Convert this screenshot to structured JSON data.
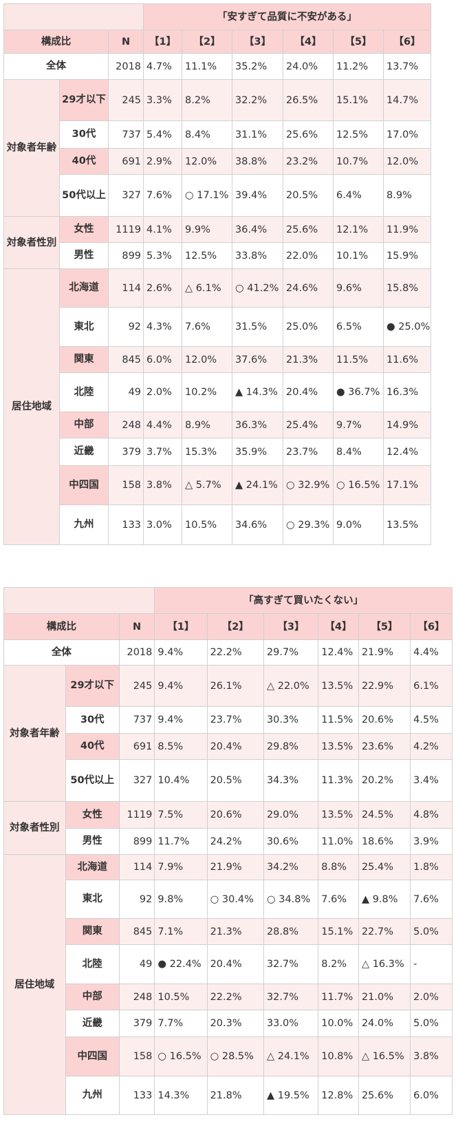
{
  "tables": [
    {
      "title": "「安すぎて品質に不安がある」",
      "headers": [
        "構成比",
        "N",
        "【1】",
        "【2】",
        "【3】",
        "【4】",
        "【5】",
        "【6】"
      ],
      "groups": [
        {
          "label": "全体",
          "rows": [
            {
              "label": "",
              "n": "2018",
              "values": [
                "4.7%",
                "11.1%",
                "35.2%",
                "24.0%",
                "11.2%",
                "13.7%"
              ]
            }
          ]
        },
        {
          "label": "対象者年齢",
          "rows": [
            {
              "label": "29才以下",
              "n": "245",
              "values": [
                "3.3%",
                "8.2%",
                "32.2%",
                "26.5%",
                "15.1%",
                "14.7%"
              ]
            },
            {
              "label": "30代",
              "n": "737",
              "values": [
                "5.4%",
                "8.4%",
                "31.1%",
                "25.6%",
                "12.5%",
                "17.0%"
              ]
            },
            {
              "label": "40代",
              "n": "691",
              "values": [
                "2.9%",
                "12.0%",
                "38.8%",
                "23.2%",
                "10.7%",
                "12.0%"
              ]
            },
            {
              "label": "50代以上",
              "n": "327",
              "values": [
                "7.6%",
                "○ 17.1%",
                "39.4%",
                "20.5%",
                "6.4%",
                "8.9%"
              ]
            }
          ]
        },
        {
          "label": "対象者性別",
          "rows": [
            {
              "label": "女性",
              "n": "1119",
              "values": [
                "4.1%",
                "9.9%",
                "36.4%",
                "25.6%",
                "12.1%",
                "11.9%"
              ]
            },
            {
              "label": "男性",
              "n": "899",
              "values": [
                "5.3%",
                "12.5%",
                "33.8%",
                "22.0%",
                "10.1%",
                "15.9%"
              ]
            }
          ]
        },
        {
          "label": "居住地域",
          "rows": [
            {
              "label": "北海道",
              "n": "114",
              "values": [
                "2.6%",
                "△ 6.1%",
                "○ 41.2%",
                "24.6%",
                "9.6%",
                "15.8%"
              ]
            },
            {
              "label": "東北",
              "n": "92",
              "values": [
                "4.3%",
                "7.6%",
                "31.5%",
                "25.0%",
                "6.5%",
                "● 25.0%"
              ]
            },
            {
              "label": "関東",
              "n": "845",
              "values": [
                "6.0%",
                "12.0%",
                "37.6%",
                "21.3%",
                "11.5%",
                "11.6%"
              ]
            },
            {
              "label": "北陸",
              "n": "49",
              "values": [
                "2.0%",
                "10.2%",
                "▲ 14.3%",
                "20.4%",
                "● 36.7%",
                "16.3%"
              ]
            },
            {
              "label": "中部",
              "n": "248",
              "values": [
                "4.4%",
                "8.9%",
                "36.3%",
                "25.4%",
                "9.7%",
                "14.9%"
              ]
            },
            {
              "label": "近畿",
              "n": "379",
              "values": [
                "3.7%",
                "15.3%",
                "35.9%",
                "23.7%",
                "8.4%",
                "12.4%"
              ]
            },
            {
              "label": "中四国",
              "n": "158",
              "values": [
                "3.8%",
                "△ 5.7%",
                "▲ 24.1%",
                "○ 32.9%",
                "○ 16.5%",
                "17.1%"
              ]
            },
            {
              "label": "九州",
              "n": "133",
              "values": [
                "3.0%",
                "10.5%",
                "34.6%",
                "○ 29.3%",
                "9.0%",
                "13.5%"
              ]
            }
          ]
        }
      ]
    },
    {
      "title": "「高すぎて買いたくない」",
      "headers": [
        "構成比",
        "N",
        "【1】",
        "【2】",
        "【3】",
        "【4】",
        "【5】",
        "【6】"
      ],
      "groups": [
        {
          "label": "全体",
          "rows": [
            {
              "label": "",
              "n": "2018",
              "values": [
                "9.4%",
                "22.2%",
                "29.7%",
                "12.4%",
                "21.9%",
                "4.4%"
              ]
            }
          ]
        },
        {
          "label": "対象者年齢",
          "rows": [
            {
              "label": "29才以下",
              "n": "245",
              "values": [
                "9.4%",
                "26.1%",
                "△ 22.0%",
                "13.5%",
                "22.9%",
                "6.1%"
              ]
            },
            {
              "label": "30代",
              "n": "737",
              "values": [
                "9.4%",
                "23.7%",
                "30.3%",
                "11.5%",
                "20.6%",
                "4.5%"
              ]
            },
            {
              "label": "40代",
              "n": "691",
              "values": [
                "8.5%",
                "20.4%",
                "29.8%",
                "13.5%",
                "23.6%",
                "4.2%"
              ]
            },
            {
              "label": "50代以上",
              "n": "327",
              "values": [
                "10.4%",
                "20.5%",
                "34.3%",
                "11.3%",
                "20.2%",
                "3.4%"
              ]
            }
          ]
        },
        {
          "label": "対象者性別",
          "rows": [
            {
              "label": "女性",
              "n": "1119",
              "values": [
                "7.5%",
                "20.6%",
                "29.0%",
                "13.5%",
                "24.5%",
                "4.8%"
              ]
            },
            {
              "label": "男性",
              "n": "899",
              "values": [
                "11.7%",
                "24.2%",
                "30.6%",
                "11.0%",
                "18.6%",
                "3.9%"
              ]
            }
          ]
        },
        {
          "label": "居住地域",
          "rows": [
            {
              "label": "北海道",
              "n": "114",
              "values": [
                "7.9%",
                "21.9%",
                "34.2%",
                "8.8%",
                "25.4%",
                "1.8%"
              ]
            },
            {
              "label": "東北",
              "n": "92",
              "values": [
                "9.8%",
                "○ 30.4%",
                "○ 34.8%",
                "7.6%",
                "▲ 9.8%",
                "7.6%"
              ]
            },
            {
              "label": "関東",
              "n": "845",
              "values": [
                "7.1%",
                "21.3%",
                "28.8%",
                "15.1%",
                "22.7%",
                "5.0%"
              ]
            },
            {
              "label": "北陸",
              "n": "49",
              "values": [
                "● 22.4%",
                "20.4%",
                "32.7%",
                "8.2%",
                "△ 16.3%",
                "-"
              ]
            },
            {
              "label": "中部",
              "n": "248",
              "values": [
                "10.5%",
                "22.2%",
                "32.7%",
                "11.7%",
                "21.0%",
                "2.0%"
              ]
            },
            {
              "label": "近畿",
              "n": "379",
              "values": [
                "7.7%",
                "20.3%",
                "33.0%",
                "10.0%",
                "24.0%",
                "5.0%"
              ]
            },
            {
              "label": "中四国",
              "n": "158",
              "values": [
                "○ 16.5%",
                "○ 28.5%",
                "△ 24.1%",
                "10.8%",
                "△ 16.5%",
                "3.8%"
              ]
            },
            {
              "label": "九州",
              "n": "133",
              "values": [
                "14.3%",
                "21.8%",
                "▲ 19.5%",
                "12.8%",
                "25.6%",
                "6.0%"
              ]
            }
          ]
        }
      ]
    }
  ]
}
